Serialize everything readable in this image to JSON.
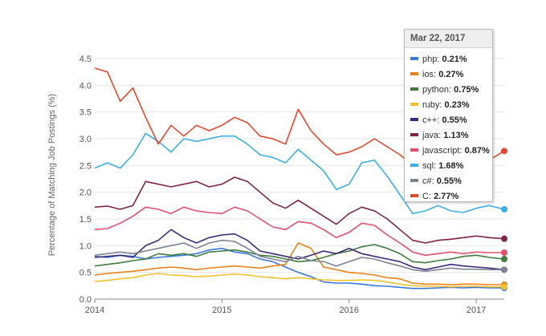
{
  "chart_data": {
    "type": "line",
    "title": "",
    "ylabel": "Percentage of Matching Job Postings (%)",
    "xlabel": "",
    "ylim": [
      0,
      4.5
    ],
    "xlim": [
      2014.0,
      2017.22
    ],
    "y_ticks": [
      "0.0",
      "0.5",
      "1.0",
      "1.5",
      "2.0",
      "2.5",
      "3.0",
      "3.5",
      "4.0",
      "4.5"
    ],
    "x_ticks": [
      {
        "value": 2014.0,
        "label": "2014"
      },
      {
        "value": 2015.0,
        "label": "2015"
      },
      {
        "value": 2016.0,
        "label": "2016"
      },
      {
        "value": 2017.0,
        "label": "2017"
      }
    ],
    "grid": true,
    "tooltip": {
      "date": "Mar 22, 2017",
      "position": "top-right"
    },
    "x": [
      2014.0,
      2014.1,
      2014.2,
      2014.3,
      2014.4,
      2014.5,
      2014.6,
      2014.7,
      2014.8,
      2014.9,
      2015.0,
      2015.1,
      2015.2,
      2015.3,
      2015.4,
      2015.5,
      2015.6,
      2015.7,
      2015.8,
      2015.9,
      2016.0,
      2016.1,
      2016.2,
      2016.3,
      2016.4,
      2016.5,
      2016.6,
      2016.7,
      2016.8,
      2016.9,
      2017.0,
      2017.1,
      2017.22
    ],
    "series": [
      {
        "name": "php",
        "color": "#3a78d8",
        "tooltip_value": "0.21%",
        "values": [
          0.8,
          0.78,
          0.82,
          0.8,
          0.75,
          0.78,
          0.8,
          0.82,
          0.85,
          0.92,
          0.95,
          0.88,
          0.85,
          0.75,
          0.7,
          0.6,
          0.5,
          0.42,
          0.32,
          0.3,
          0.3,
          0.28,
          0.25,
          0.24,
          0.22,
          0.2,
          0.2,
          0.21,
          0.22,
          0.21,
          0.22,
          0.21,
          0.21
        ]
      },
      {
        "name": "ios",
        "color": "#e8821e",
        "tooltip_value": "0.27%",
        "values": [
          0.45,
          0.48,
          0.5,
          0.52,
          0.55,
          0.58,
          0.6,
          0.58,
          0.55,
          0.58,
          0.6,
          0.62,
          0.6,
          0.58,
          0.62,
          0.65,
          1.05,
          0.95,
          0.6,
          0.55,
          0.5,
          0.48,
          0.45,
          0.4,
          0.38,
          0.3,
          0.28,
          0.28,
          0.27,
          0.28,
          0.28,
          0.27,
          0.27
        ]
      },
      {
        "name": "python",
        "color": "#3d7d3d",
        "tooltip_value": "0.75%",
        "values": [
          0.62,
          0.65,
          0.68,
          0.72,
          0.75,
          0.85,
          0.82,
          0.85,
          0.8,
          0.88,
          0.9,
          0.92,
          0.88,
          0.82,
          0.8,
          0.75,
          0.7,
          0.72,
          0.78,
          0.85,
          0.9,
          0.98,
          1.02,
          0.95,
          0.85,
          0.7,
          0.68,
          0.72,
          0.75,
          0.8,
          0.82,
          0.78,
          0.75
        ]
      },
      {
        "name": "ruby",
        "color": "#f2c12e",
        "tooltip_value": "0.23%",
        "values": [
          0.33,
          0.35,
          0.38,
          0.4,
          0.45,
          0.48,
          0.45,
          0.44,
          0.42,
          0.43,
          0.45,
          0.47,
          0.45,
          0.42,
          0.4,
          0.38,
          0.4,
          0.38,
          0.36,
          0.35,
          0.35,
          0.36,
          0.35,
          0.32,
          0.28,
          0.25,
          0.24,
          0.24,
          0.23,
          0.24,
          0.24,
          0.23,
          0.23
        ]
      },
      {
        "name": "c++",
        "color": "#3b2a7a",
        "tooltip_value": "0.55%",
        "values": [
          0.78,
          0.8,
          0.82,
          0.78,
          1.0,
          1.1,
          1.3,
          1.15,
          1.05,
          1.15,
          1.2,
          1.22,
          1.1,
          0.9,
          0.85,
          0.8,
          0.75,
          0.82,
          0.9,
          0.85,
          0.95,
          0.85,
          0.8,
          0.75,
          0.7,
          0.6,
          0.55,
          0.6,
          0.65,
          0.62,
          0.6,
          0.58,
          0.55
        ]
      },
      {
        "name": "java",
        "color": "#7f2546",
        "tooltip_value": "1.13%",
        "values": [
          1.72,
          1.74,
          1.68,
          1.75,
          2.2,
          2.15,
          2.1,
          2.15,
          2.2,
          2.1,
          2.15,
          2.28,
          2.2,
          2.0,
          1.8,
          1.7,
          1.85,
          1.7,
          1.55,
          1.4,
          1.6,
          1.72,
          1.65,
          1.5,
          1.3,
          1.1,
          1.05,
          1.1,
          1.12,
          1.15,
          1.18,
          1.15,
          1.13
        ]
      },
      {
        "name": "javascript",
        "color": "#e0516e",
        "tooltip_value": "0.87%",
        "values": [
          1.3,
          1.32,
          1.42,
          1.55,
          1.72,
          1.68,
          1.6,
          1.72,
          1.65,
          1.62,
          1.6,
          1.72,
          1.65,
          1.5,
          1.35,
          1.3,
          1.45,
          1.42,
          1.3,
          1.15,
          1.25,
          1.42,
          1.38,
          1.2,
          1.05,
          0.88,
          0.82,
          0.85,
          0.88,
          0.85,
          0.88,
          0.87,
          0.87
        ]
      },
      {
        "name": "sql",
        "color": "#3eaee6",
        "tooltip_value": "1.68%",
        "values": [
          2.45,
          2.55,
          2.45,
          2.7,
          3.1,
          2.95,
          2.75,
          3.0,
          2.95,
          3.0,
          3.05,
          3.05,
          2.9,
          2.7,
          2.65,
          2.55,
          2.8,
          2.6,
          2.4,
          2.05,
          2.15,
          2.55,
          2.6,
          2.3,
          1.95,
          1.6,
          1.65,
          1.75,
          1.65,
          1.62,
          1.7,
          1.75,
          1.68
        ]
      },
      {
        "name": "c#",
        "color": "#7a8493",
        "tooltip_value": "0.55%",
        "values": [
          0.82,
          0.85,
          0.88,
          0.85,
          0.9,
          0.95,
          1.0,
          1.05,
          0.95,
          1.05,
          1.1,
          1.08,
          0.95,
          0.8,
          0.75,
          0.7,
          0.8,
          0.72,
          0.7,
          0.62,
          0.7,
          0.78,
          0.75,
          0.68,
          0.62,
          0.55,
          0.52,
          0.55,
          0.58,
          0.56,
          0.56,
          0.55,
          0.55
        ]
      },
      {
        "name": "C",
        "color": "#e0492f",
        "tooltip_value": "2.77%",
        "values": [
          4.32,
          4.25,
          3.7,
          3.95,
          3.4,
          2.9,
          3.25,
          3.05,
          3.25,
          3.15,
          3.25,
          3.4,
          3.3,
          3.05,
          3.0,
          2.9,
          3.55,
          3.15,
          2.9,
          2.7,
          2.75,
          2.85,
          3.0,
          2.85,
          2.7,
          2.5,
          2.6,
          2.75,
          2.7,
          2.55,
          2.55,
          2.6,
          2.77
        ]
      }
    ]
  }
}
